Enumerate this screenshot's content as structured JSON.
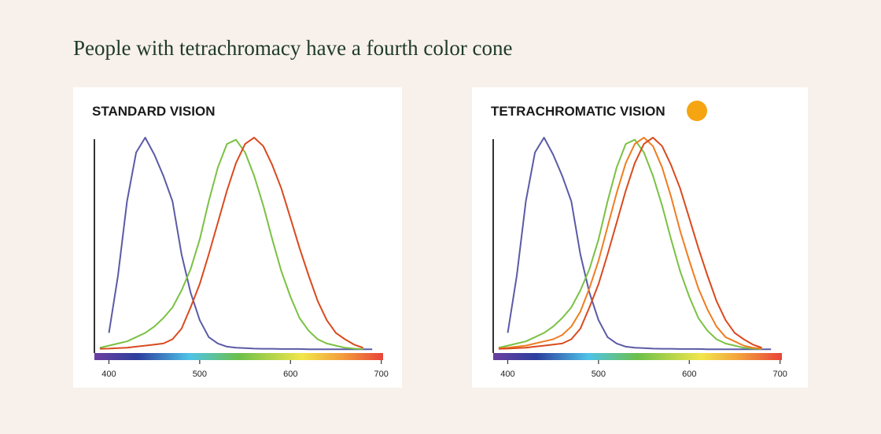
{
  "title": "People with tetrachromacy have a fourth color cone",
  "chart_data": [
    {
      "type": "line",
      "title": "STANDARD VISION",
      "x": [
        390,
        400,
        410,
        420,
        430,
        440,
        450,
        460,
        470,
        480,
        490,
        500,
        510,
        520,
        530,
        540,
        550,
        560,
        570,
        580,
        590,
        600,
        610,
        620,
        630,
        640,
        650,
        660,
        670,
        680,
        690
      ],
      "xlim": [
        384,
        702
      ],
      "ylim": [
        0,
        1
      ],
      "xticks": [
        400,
        500,
        600,
        700
      ],
      "series": [
        {
          "color": "#5b5aa6",
          "values": [
            null,
            0.08,
            0.35,
            0.7,
            0.93,
            1.0,
            0.92,
            0.82,
            0.7,
            0.45,
            0.27,
            0.14,
            0.06,
            0.03,
            0.015,
            0.01,
            0.008,
            0.006,
            0.005,
            0.005,
            0.004,
            0.004,
            0.004,
            0.003,
            0.003,
            0.003,
            0.003,
            0.003,
            0.003,
            0.003,
            0.003
          ]
        },
        {
          "color": "#7ac143",
          "values": [
            0.01,
            0.02,
            0.03,
            0.04,
            0.06,
            0.08,
            0.11,
            0.15,
            0.2,
            0.28,
            0.38,
            0.52,
            0.7,
            0.86,
            0.97,
            0.99,
            0.93,
            0.82,
            0.68,
            0.52,
            0.37,
            0.25,
            0.15,
            0.09,
            0.05,
            0.03,
            0.02,
            0.01,
            0.006,
            0.004,
            null
          ]
        },
        {
          "color": "#d94a1e",
          "values": [
            0.005,
            0.006,
            0.008,
            0.01,
            0.015,
            0.02,
            0.025,
            0.03,
            0.05,
            0.1,
            0.2,
            0.31,
            0.45,
            0.6,
            0.75,
            0.88,
            0.97,
            1.0,
            0.96,
            0.87,
            0.76,
            0.62,
            0.48,
            0.35,
            0.23,
            0.14,
            0.08,
            0.05,
            0.025,
            0.01,
            null
          ]
        }
      ]
    },
    {
      "type": "line",
      "title": "TETRACHROMATIC VISION",
      "x": [
        390,
        400,
        410,
        420,
        430,
        440,
        450,
        460,
        470,
        480,
        490,
        500,
        510,
        520,
        530,
        540,
        550,
        560,
        570,
        580,
        590,
        600,
        610,
        620,
        630,
        640,
        650,
        660,
        670,
        680,
        690
      ],
      "xlim": [
        384,
        702
      ],
      "ylim": [
        0,
        1
      ],
      "xticks": [
        400,
        500,
        600,
        700
      ],
      "series": [
        {
          "color": "#5b5aa6",
          "values": [
            null,
            0.08,
            0.35,
            0.7,
            0.93,
            1.0,
            0.92,
            0.82,
            0.7,
            0.45,
            0.27,
            0.14,
            0.06,
            0.03,
            0.015,
            0.01,
            0.008,
            0.006,
            0.005,
            0.005,
            0.004,
            0.004,
            0.004,
            0.003,
            0.003,
            0.003,
            0.003,
            0.003,
            0.003,
            0.003,
            0.003
          ]
        },
        {
          "color": "#7ac143",
          "values": [
            0.01,
            0.02,
            0.03,
            0.04,
            0.06,
            0.08,
            0.11,
            0.15,
            0.2,
            0.28,
            0.38,
            0.52,
            0.7,
            0.86,
            0.97,
            0.99,
            0.93,
            0.82,
            0.68,
            0.52,
            0.37,
            0.25,
            0.15,
            0.09,
            0.05,
            0.03,
            0.02,
            0.01,
            0.006,
            0.004,
            null
          ]
        },
        {
          "color": "#ef7d22",
          "values": [
            0.007,
            0.01,
            0.015,
            0.02,
            0.03,
            0.04,
            0.05,
            0.07,
            0.11,
            0.18,
            0.29,
            0.42,
            0.58,
            0.74,
            0.88,
            0.97,
            1.0,
            0.96,
            0.86,
            0.72,
            0.56,
            0.42,
            0.29,
            0.19,
            0.11,
            0.06,
            0.04,
            0.02,
            0.01,
            0.006,
            null
          ]
        },
        {
          "color": "#d94a1e",
          "values": [
            0.005,
            0.006,
            0.008,
            0.01,
            0.015,
            0.02,
            0.025,
            0.03,
            0.05,
            0.1,
            0.2,
            0.31,
            0.45,
            0.6,
            0.75,
            0.88,
            0.97,
            1.0,
            0.96,
            0.87,
            0.76,
            0.62,
            0.48,
            0.35,
            0.23,
            0.14,
            0.08,
            0.05,
            0.025,
            0.01,
            null
          ]
        }
      ]
    }
  ]
}
